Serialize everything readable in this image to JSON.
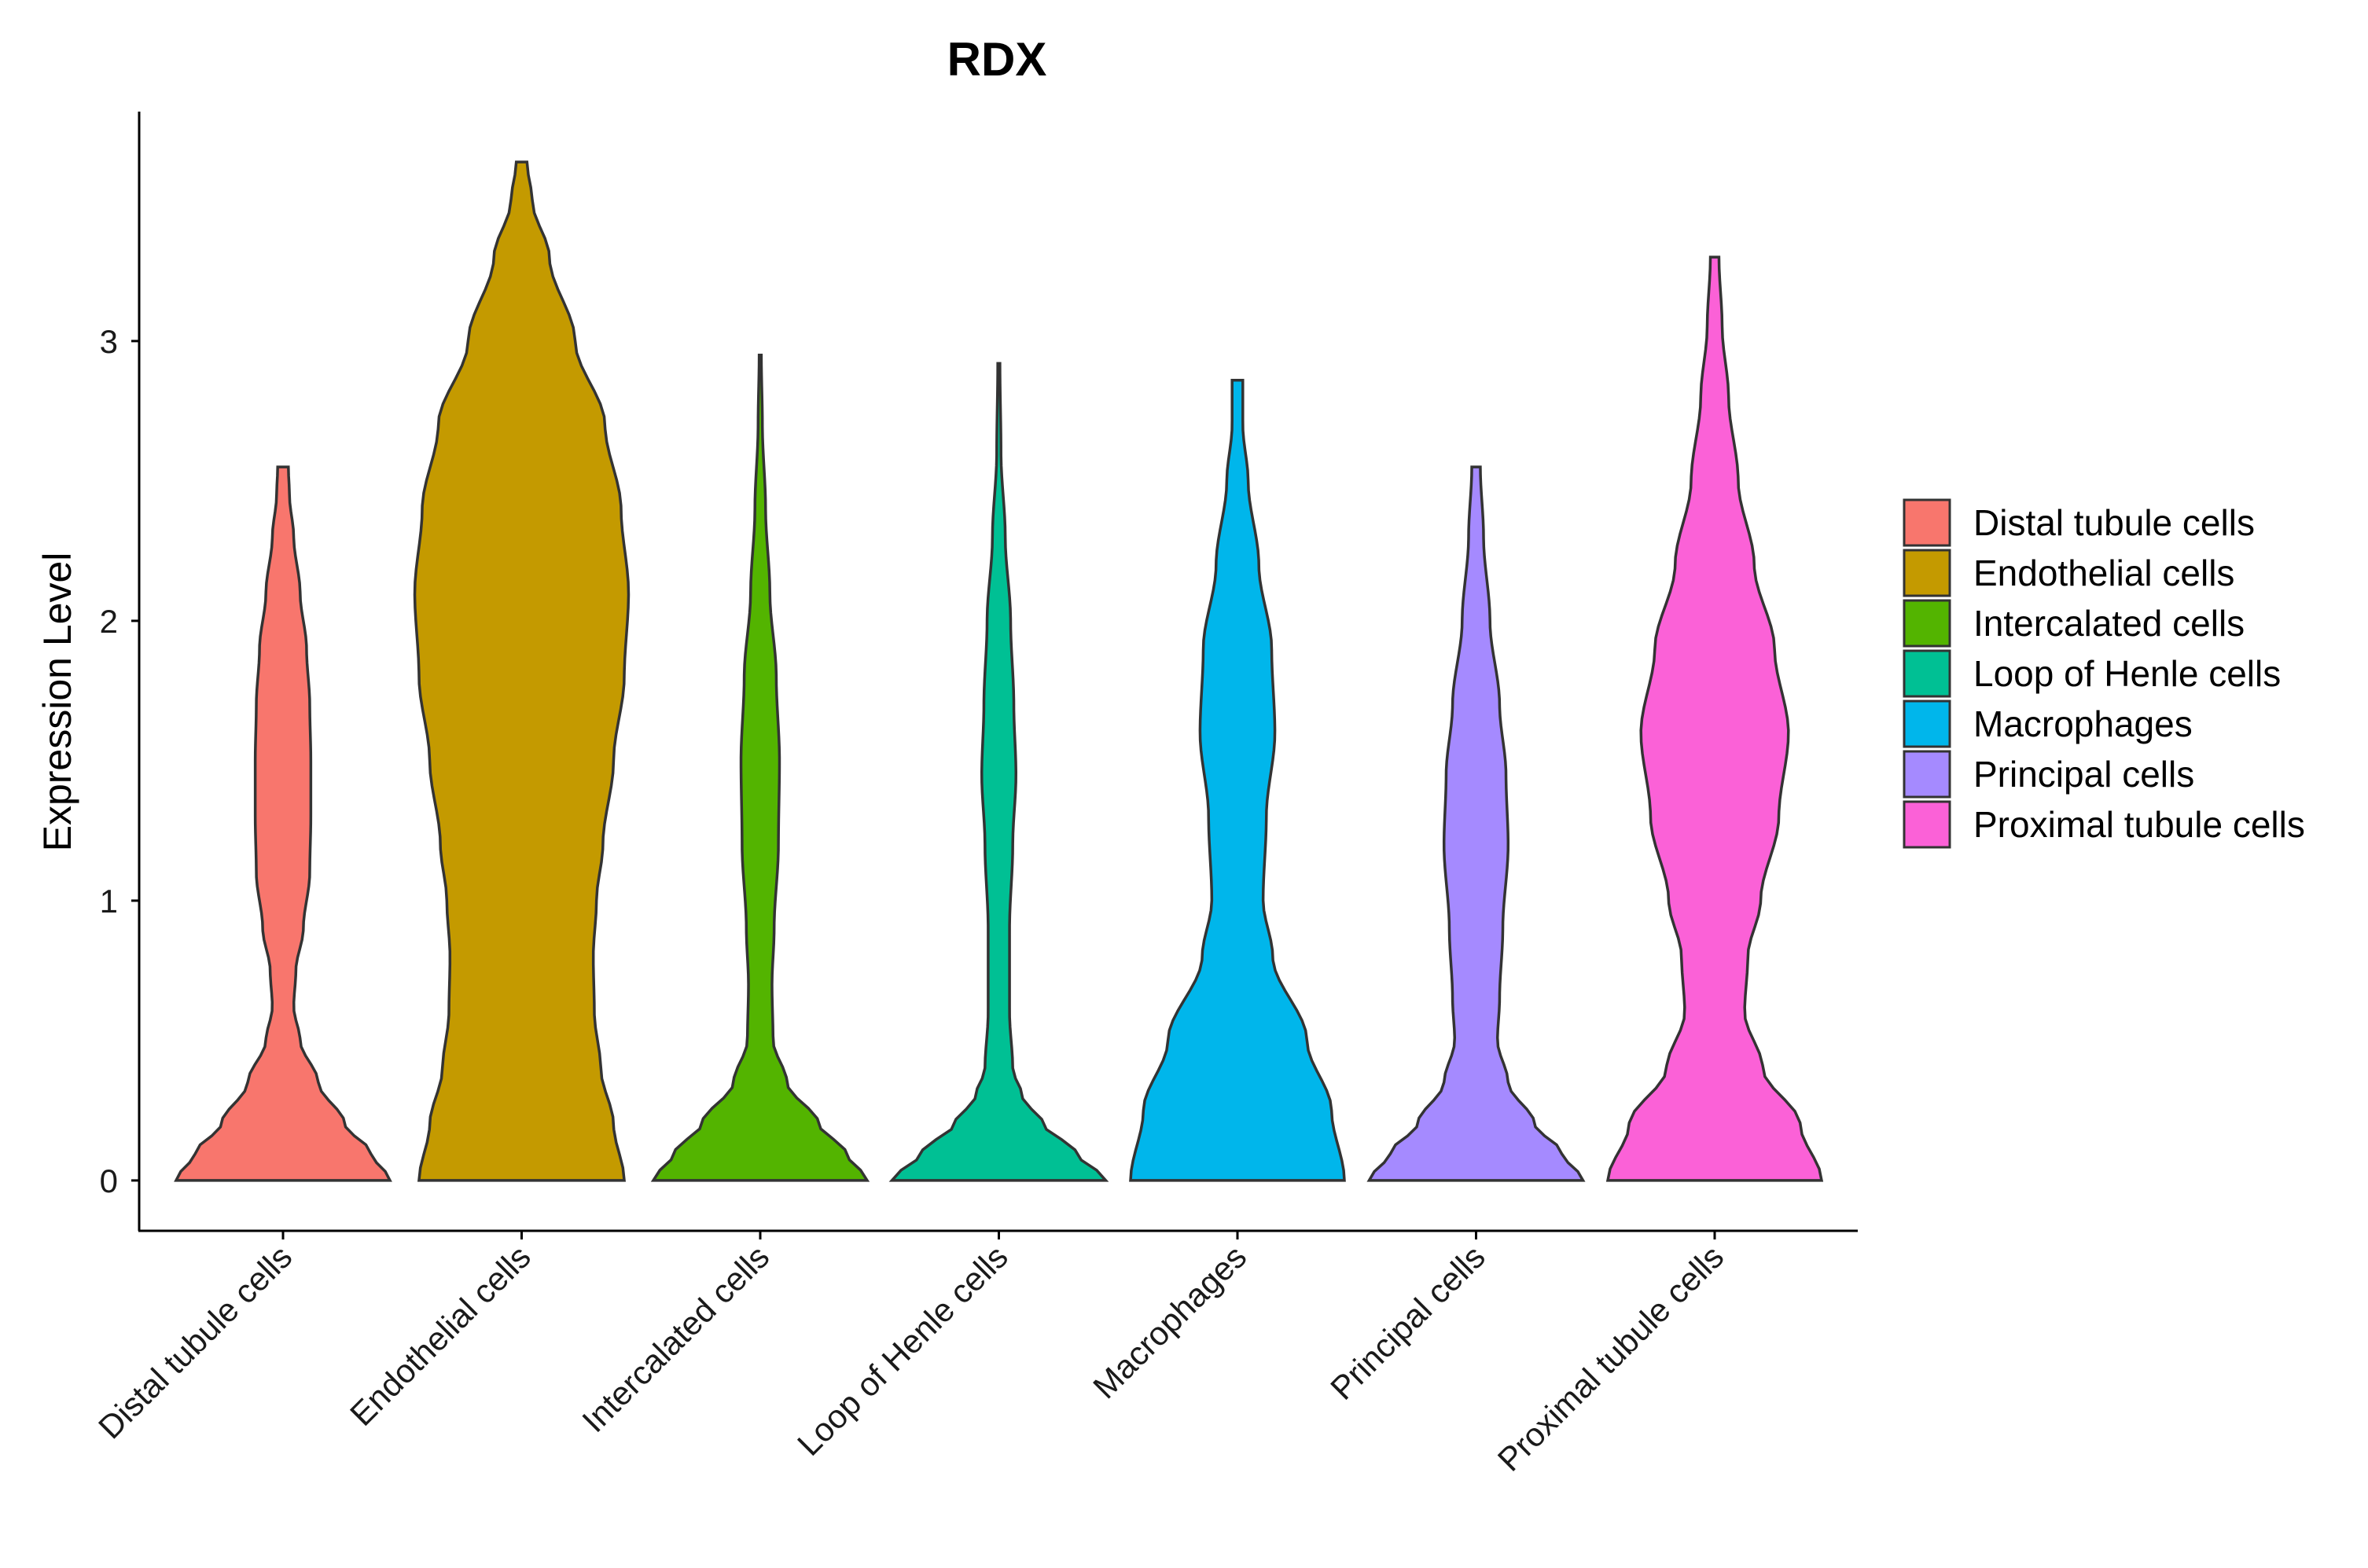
{
  "chart_data": {
    "type": "violin",
    "title": "RDX",
    "xlabel": "",
    "ylabel": "Expression Level",
    "ylim": [
      -0.18,
      3.82
    ],
    "yticks": [
      0,
      1,
      2,
      3
    ],
    "grid": false,
    "legend_position": "right",
    "categories": [
      "Distal tubule cells",
      "Endothelial cells",
      "Intercalated cells",
      "Loop of Henle cells",
      "Macrophages",
      "Principal cells",
      "Proximal tubule cells"
    ],
    "colors": [
      "#F8766D",
      "#C49A00",
      "#53B400",
      "#00C094",
      "#00B6EB",
      "#A58AFF",
      "#FB61D7"
    ],
    "max_values": [
      2.55,
      3.64,
      2.95,
      2.92,
      2.86,
      2.55,
      3.3
    ],
    "density_profiles": [
      [
        [
          0,
          1.0
        ],
        [
          0.1,
          0.82
        ],
        [
          0.2,
          0.58
        ],
        [
          0.35,
          0.33
        ],
        [
          0.5,
          0.16
        ],
        [
          0.62,
          0.1
        ],
        [
          0.75,
          0.12
        ],
        [
          0.9,
          0.19
        ],
        [
          1.1,
          0.25
        ],
        [
          1.3,
          0.26
        ],
        [
          1.5,
          0.26
        ],
        [
          1.7,
          0.25
        ],
        [
          1.9,
          0.22
        ],
        [
          2.1,
          0.16
        ],
        [
          2.3,
          0.1
        ],
        [
          2.45,
          0.06
        ],
        [
          2.55,
          0.05
        ]
      ],
      [
        [
          0,
          0.96
        ],
        [
          0.2,
          0.86
        ],
        [
          0.4,
          0.74
        ],
        [
          0.6,
          0.68
        ],
        [
          0.8,
          0.67
        ],
        [
          1.0,
          0.7
        ],
        [
          1.2,
          0.76
        ],
        [
          1.5,
          0.86
        ],
        [
          1.8,
          0.96
        ],
        [
          2.1,
          1.0
        ],
        [
          2.4,
          0.93
        ],
        [
          2.7,
          0.78
        ],
        [
          3.0,
          0.5
        ],
        [
          3.3,
          0.26
        ],
        [
          3.5,
          0.1
        ],
        [
          3.64,
          0.05
        ]
      ],
      [
        [
          0,
          1.0
        ],
        [
          0.1,
          0.8
        ],
        [
          0.2,
          0.55
        ],
        [
          0.35,
          0.25
        ],
        [
          0.5,
          0.12
        ],
        [
          0.7,
          0.11
        ],
        [
          0.9,
          0.13
        ],
        [
          1.2,
          0.17
        ],
        [
          1.5,
          0.18
        ],
        [
          1.8,
          0.15
        ],
        [
          2.1,
          0.09
        ],
        [
          2.4,
          0.05
        ],
        [
          2.7,
          0.02
        ],
        [
          2.95,
          0.01
        ]
      ],
      [
        [
          0,
          1.0
        ],
        [
          0.1,
          0.72
        ],
        [
          0.2,
          0.42
        ],
        [
          0.3,
          0.22
        ],
        [
          0.4,
          0.13
        ],
        [
          0.6,
          0.1
        ],
        [
          0.9,
          0.1
        ],
        [
          1.2,
          0.13
        ],
        [
          1.45,
          0.16
        ],
        [
          1.7,
          0.14
        ],
        [
          2.0,
          0.11
        ],
        [
          2.3,
          0.06
        ],
        [
          2.6,
          0.02
        ],
        [
          2.92,
          0.01
        ]
      ],
      [
        [
          0,
          1.0
        ],
        [
          0.25,
          0.88
        ],
        [
          0.5,
          0.65
        ],
        [
          0.8,
          0.33
        ],
        [
          1.0,
          0.24
        ],
        [
          1.3,
          0.27
        ],
        [
          1.6,
          0.35
        ],
        [
          1.9,
          0.32
        ],
        [
          2.2,
          0.2
        ],
        [
          2.5,
          0.1
        ],
        [
          2.7,
          0.05
        ],
        [
          2.86,
          0.05
        ]
      ],
      [
        [
          0,
          1.0
        ],
        [
          0.1,
          0.8
        ],
        [
          0.2,
          0.55
        ],
        [
          0.35,
          0.3
        ],
        [
          0.5,
          0.2
        ],
        [
          0.65,
          0.22
        ],
        [
          0.9,
          0.25
        ],
        [
          1.2,
          0.3
        ],
        [
          1.45,
          0.28
        ],
        [
          1.7,
          0.22
        ],
        [
          2.0,
          0.13
        ],
        [
          2.3,
          0.07
        ],
        [
          2.55,
          0.04
        ]
      ],
      [
        [
          0,
          1.0
        ],
        [
          0.2,
          0.8
        ],
        [
          0.4,
          0.45
        ],
        [
          0.6,
          0.28
        ],
        [
          0.8,
          0.31
        ],
        [
          1.0,
          0.43
        ],
        [
          1.3,
          0.6
        ],
        [
          1.6,
          0.69
        ],
        [
          1.9,
          0.56
        ],
        [
          2.2,
          0.37
        ],
        [
          2.5,
          0.22
        ],
        [
          2.8,
          0.13
        ],
        [
          3.05,
          0.07
        ],
        [
          3.3,
          0.04
        ]
      ]
    ]
  }
}
